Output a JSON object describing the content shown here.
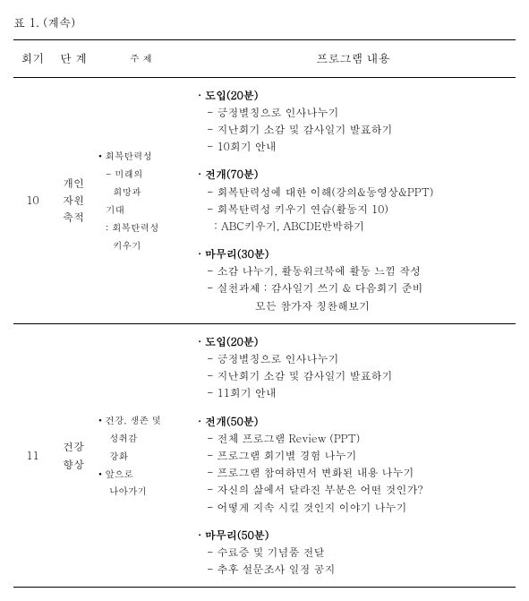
{
  "caption": "표 1. (계속)",
  "headers": {
    "session": "회기",
    "stage": "단 계",
    "topic": "주 제",
    "content": "프로그램 내용"
  },
  "rows": [
    {
      "session": "10",
      "stage": "개인\n자원\n축적",
      "topic": {
        "lines": [
          {
            "text": "• 회복탄력성",
            "cls": "topic-bullet"
          },
          {
            "text": "- 미래의",
            "cls": "topic-sub"
          },
          {
            "text": "희망과",
            "cls": "topic-sub",
            "pad": "16px"
          },
          {
            "text": "기대",
            "cls": "topic-sub",
            "pad": "8px"
          },
          {
            "text": ": 회복탄력성",
            "cls": "topic-sub"
          },
          {
            "text": "키우기",
            "cls": "topic-sub",
            "pad": "16px"
          }
        ]
      },
      "content": [
        {
          "title": "· 도입(20분)",
          "items": [
            "- 긍정별칭으로 인사나누기",
            "- 지난회기 소감 및 감사일기 발표하기",
            "- 10회기 안내"
          ]
        },
        {
          "title": "· 전개(70분)",
          "items": [
            "- 회복탄력성에 대한 이해(강의&동영상&PPT)",
            "- 회복탄력성 키우기 연습(활동지 10)",
            "  : ABC키우기, ABCDE반박하기"
          ]
        },
        {
          "title": "· 마무리(30분)",
          "items": [
            "- 소감 나누기, 활동워크북에 활동 느낌 작성",
            "- 실천과제 : 감사일기 쓰기 & 다음회기 준비",
            "             모든 참가자 칭찬해보기"
          ]
        }
      ]
    },
    {
      "session": "11",
      "stage": "건강\n향상",
      "topic": {
        "lines": [
          {
            "text": "• 건강, 생존 및",
            "cls": "topic-bullet"
          },
          {
            "text": "성취감",
            "cls": "topic-sub",
            "pad": "12px"
          },
          {
            "text": "강화",
            "cls": "topic-sub",
            "pad": "12px"
          },
          {
            "text": "• 앞으로",
            "cls": "topic-bullet"
          },
          {
            "text": "나아가기",
            "cls": "topic-sub",
            "pad": "12px"
          }
        ]
      },
      "content": [
        {
          "title": "· 도입(20분)",
          "items": [
            "- 긍정별칭으로 인사나누기",
            "- 지난회기 소감 및 감사일기 발표하기",
            "- 11회기 안내"
          ]
        },
        {
          "title": "· 전개(50분)",
          "items": [
            "- 전체 프로그램 Review (PPT)",
            "- 프로그램 회기별 경험 나누기",
            "- 프로그램 참여하면서 변화된 내용 나누기",
            "- 자신의 삶에서 달라진 부분은 어떤 것인가?",
            "- 어떻게 지속 시킬 것인지 이야기 나누기"
          ]
        },
        {
          "title": "· 마무리(50분)",
          "items": [
            "- 수료증 및 기념품 전달",
            "- 추후 설문조사 일정 공지"
          ]
        }
      ]
    }
  ]
}
